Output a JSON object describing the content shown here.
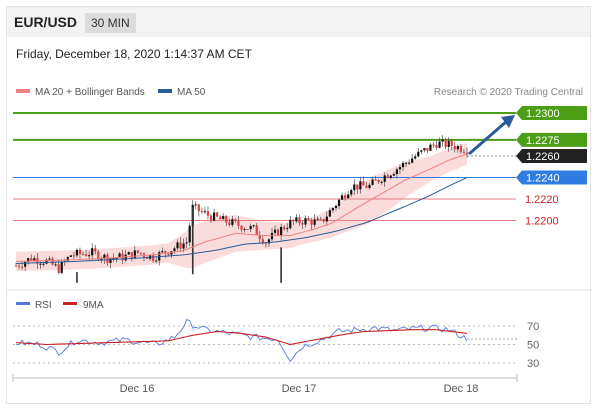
{
  "header": {
    "symbol": "EUR/USD",
    "timeframe": "30 MIN",
    "datetime": "Friday, December 18, 2020 1:14:37 AM CET"
  },
  "legend": {
    "ma20": "MA 20 + Bollinger Bands",
    "ma50": "MA 50",
    "credit": "Research © 2020 Trading Central",
    "rsi": "RSI",
    "ma9": "9MA"
  },
  "colors": {
    "up": "#111111",
    "down": "#e04040",
    "band": "#f9d0d0",
    "ma20": "#f08080",
    "ma50": "#2a5b9a",
    "resistance": "#4b9e16",
    "support": "#e67a80",
    "pivot": "#2f7de1",
    "last": "#222222",
    "rsi": "#5577dd",
    "rsi_ma": "#cc2222",
    "arrow": "#2a5b9a"
  },
  "chart_data": [
    {
      "type": "candlestick",
      "x_labels": [
        "Dec 16",
        "Dec 17",
        "Dec 18"
      ],
      "last_price": 1.226,
      "levels": [
        {
          "value": 1.23,
          "label": "1.2300",
          "kind": "resistance"
        },
        {
          "value": 1.2275,
          "label": "1.2275",
          "kind": "resistance"
        },
        {
          "value": 1.226,
          "label": "1.2260",
          "kind": "last"
        },
        {
          "value": 1.224,
          "label": "1.2240",
          "kind": "pivot"
        },
        {
          "value": 1.222,
          "label": "1.2220",
          "kind": "support"
        },
        {
          "value": 1.22,
          "label": "1.2200",
          "kind": "support"
        }
      ],
      "close_path": [
        [
          0,
          1.2158
        ],
        [
          5,
          1.2165
        ],
        [
          10,
          1.2162
        ],
        [
          14,
          1.2155
        ],
        [
          18,
          1.2168
        ],
        [
          25,
          1.217
        ],
        [
          30,
          1.2165
        ],
        [
          35,
          1.2166
        ],
        [
          40,
          1.217
        ],
        [
          45,
          1.2166
        ],
        [
          50,
          1.2172
        ],
        [
          56,
          1.218
        ],
        [
          58,
          1.2212
        ],
        [
          63,
          1.2205
        ],
        [
          68,
          1.22
        ],
        [
          74,
          1.2195
        ],
        [
          78,
          1.2192
        ],
        [
          82,
          1.218
        ],
        [
          86,
          1.219
        ],
        [
          90,
          1.2198
        ],
        [
          95,
          1.22
        ],
        [
          100,
          1.2198
        ],
        [
          104,
          1.2212
        ],
        [
          110,
          1.2232
        ],
        [
          116,
          1.2232
        ],
        [
          120,
          1.224
        ],
        [
          126,
          1.225
        ],
        [
          130,
          1.2258
        ],
        [
          134,
          1.2265
        ],
        [
          138,
          1.2272
        ],
        [
          143,
          1.227
        ],
        [
          148,
          1.2266
        ]
      ],
      "ma20_path": [
        [
          0,
          1.2162
        ],
        [
          15,
          1.2163
        ],
        [
          30,
          1.2165
        ],
        [
          45,
          1.2168
        ],
        [
          55,
          1.2172
        ],
        [
          62,
          1.218
        ],
        [
          72,
          1.2188
        ],
        [
          82,
          1.2186
        ],
        [
          90,
          1.2186
        ],
        [
          98,
          1.2192
        ],
        [
          104,
          1.2198
        ],
        [
          112,
          1.2212
        ],
        [
          120,
          1.2225
        ],
        [
          128,
          1.2238
        ],
        [
          136,
          1.2248
        ],
        [
          142,
          1.2256
        ],
        [
          148,
          1.2262
        ]
      ],
      "ma50_path": [
        [
          0,
          1.216
        ],
        [
          20,
          1.2162
        ],
        [
          40,
          1.2165
        ],
        [
          55,
          1.2168
        ],
        [
          65,
          1.2172
        ],
        [
          75,
          1.2178
        ],
        [
          85,
          1.218
        ],
        [
          95,
          1.2184
        ],
        [
          105,
          1.219
        ],
        [
          115,
          1.2198
        ],
        [
          125,
          1.221
        ],
        [
          135,
          1.2222
        ],
        [
          142,
          1.2232
        ],
        [
          148,
          1.224
        ]
      ],
      "band_half_width": [
        [
          0,
          0.0009
        ],
        [
          50,
          0.0009
        ],
        [
          58,
          0.002
        ],
        [
          70,
          0.0018
        ],
        [
          82,
          0.0013
        ],
        [
          95,
          0.0011
        ],
        [
          105,
          0.0014
        ],
        [
          115,
          0.0021
        ],
        [
          125,
          0.0018
        ],
        [
          135,
          0.0012
        ],
        [
          148,
          0.001
        ]
      ],
      "forecast_arrow": {
        "from": 1.226,
        "to": 1.23
      }
    },
    {
      "type": "line",
      "title": "RSI",
      "levels": [
        {
          "value": 70,
          "label": "70"
        },
        {
          "value": 50,
          "label": "50"
        },
        {
          "value": 30,
          "label": "30"
        }
      ],
      "rsi_path": [
        [
          0,
          52
        ],
        [
          8,
          50
        ],
        [
          14,
          42
        ],
        [
          20,
          55
        ],
        [
          28,
          52
        ],
        [
          36,
          55
        ],
        [
          46,
          50
        ],
        [
          52,
          58
        ],
        [
          56,
          74
        ],
        [
          62,
          66
        ],
        [
          70,
          62
        ],
        [
          78,
          58
        ],
        [
          86,
          56
        ],
        [
          90,
          34
        ],
        [
          94,
          48
        ],
        [
          100,
          55
        ],
        [
          106,
          64
        ],
        [
          112,
          66
        ],
        [
          118,
          68
        ],
        [
          124,
          65
        ],
        [
          130,
          67
        ],
        [
          136,
          68
        ],
        [
          142,
          66
        ],
        [
          148,
          56
        ]
      ],
      "ma9_path": [
        [
          0,
          52
        ],
        [
          10,
          50
        ],
        [
          20,
          51
        ],
        [
          30,
          52
        ],
        [
          40,
          53
        ],
        [
          50,
          54
        ],
        [
          58,
          60
        ],
        [
          66,
          64
        ],
        [
          74,
          62
        ],
        [
          82,
          58
        ],
        [
          90,
          50
        ],
        [
          98,
          55
        ],
        [
          106,
          60
        ],
        [
          114,
          64
        ],
        [
          122,
          65
        ],
        [
          130,
          66
        ],
        [
          138,
          66
        ],
        [
          148,
          62
        ]
      ]
    }
  ]
}
